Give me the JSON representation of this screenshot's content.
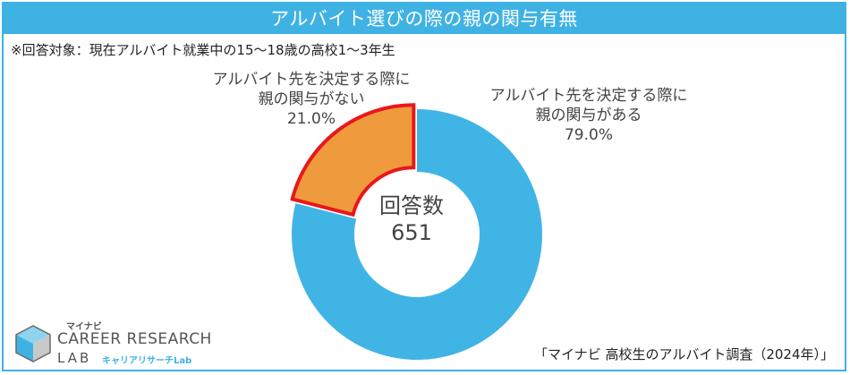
{
  "title": "アルバイト選びの際の親の関与有無",
  "subtitle": "※回答対象：現在アルバイト就業中の15～18歳の高校1～3年生",
  "chart_data": {
    "type": "pie",
    "variant": "donut",
    "title": "アルバイト選びの際の親の関与有無",
    "center_label": "回答数",
    "center_value": "651",
    "slices": [
      {
        "label_line1": "アルバイト先を決定する際に",
        "label_line2": "親の関与がある",
        "value": 79.0,
        "value_label": "79.0%",
        "color": "#41b4e6"
      },
      {
        "label_line1": "アルバイト先を決定する際に",
        "label_line2": "親の関与がない",
        "value": 21.0,
        "value_label": "21.0%",
        "color": "#f09a3e",
        "highlight_color": "#e8181a"
      }
    ]
  },
  "source": "「マイナビ 高校生のアルバイト調査（2024年）」",
  "logo": {
    "maker": "マイナビ",
    "line1": "CAREER RESEARCH",
    "line2": "LAB",
    "sub": "キャリアリサーチLab"
  }
}
